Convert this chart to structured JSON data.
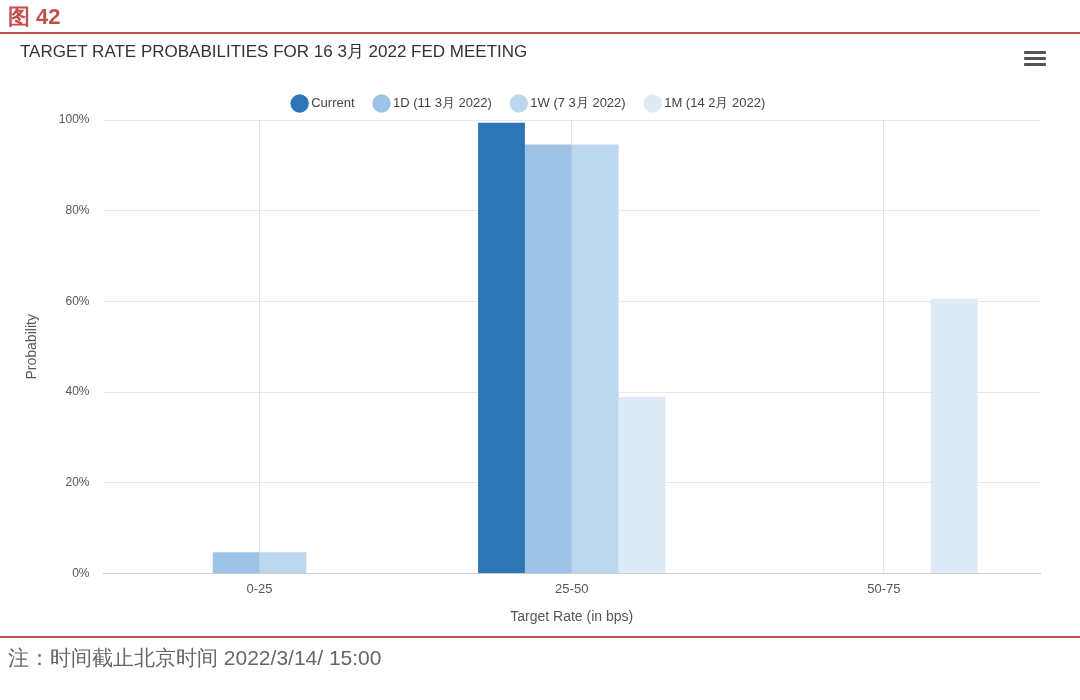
{
  "chart_data": {
    "type": "bar",
    "title": "TARGET RATE PROBABILITIES FOR 16 3月 2022 FED MEETING",
    "xlabel": "Target Rate (in bps)",
    "ylabel": "Probability",
    "categories": [
      "0-25",
      "25-50",
      "50-75"
    ],
    "series": [
      {
        "name": "Current",
        "color": "#2e75b6",
        "values": [
          0,
          99.4,
          0
        ]
      },
      {
        "name": "1D (11 3月 2022)",
        "color": "#9dc3e6",
        "values": [
          4.7,
          94.6,
          0
        ]
      },
      {
        "name": "1W (7 3月 2022)",
        "color": "#bdd7ee",
        "values": [
          4.7,
          94.6,
          0
        ]
      },
      {
        "name": "1M (14 2月 2022)",
        "color": "#deebf7",
        "values": [
          0,
          39.0,
          60.6
        ]
      }
    ],
    "ylim": [
      0,
      100
    ],
    "yticks": [
      {
        "value": 0,
        "label": "0%"
      },
      {
        "value": 20,
        "label": "20%"
      },
      {
        "value": 40,
        "label": "40%"
      },
      {
        "value": 60,
        "label": "60%"
      },
      {
        "value": 80,
        "label": "80%"
      },
      {
        "value": 100,
        "label": "100%"
      }
    ],
    "grid": true,
    "legend": "top",
    "annotations": [
      "图 42",
      "注：时间截止北京时间 2022/3/14/ 15:00"
    ]
  }
}
